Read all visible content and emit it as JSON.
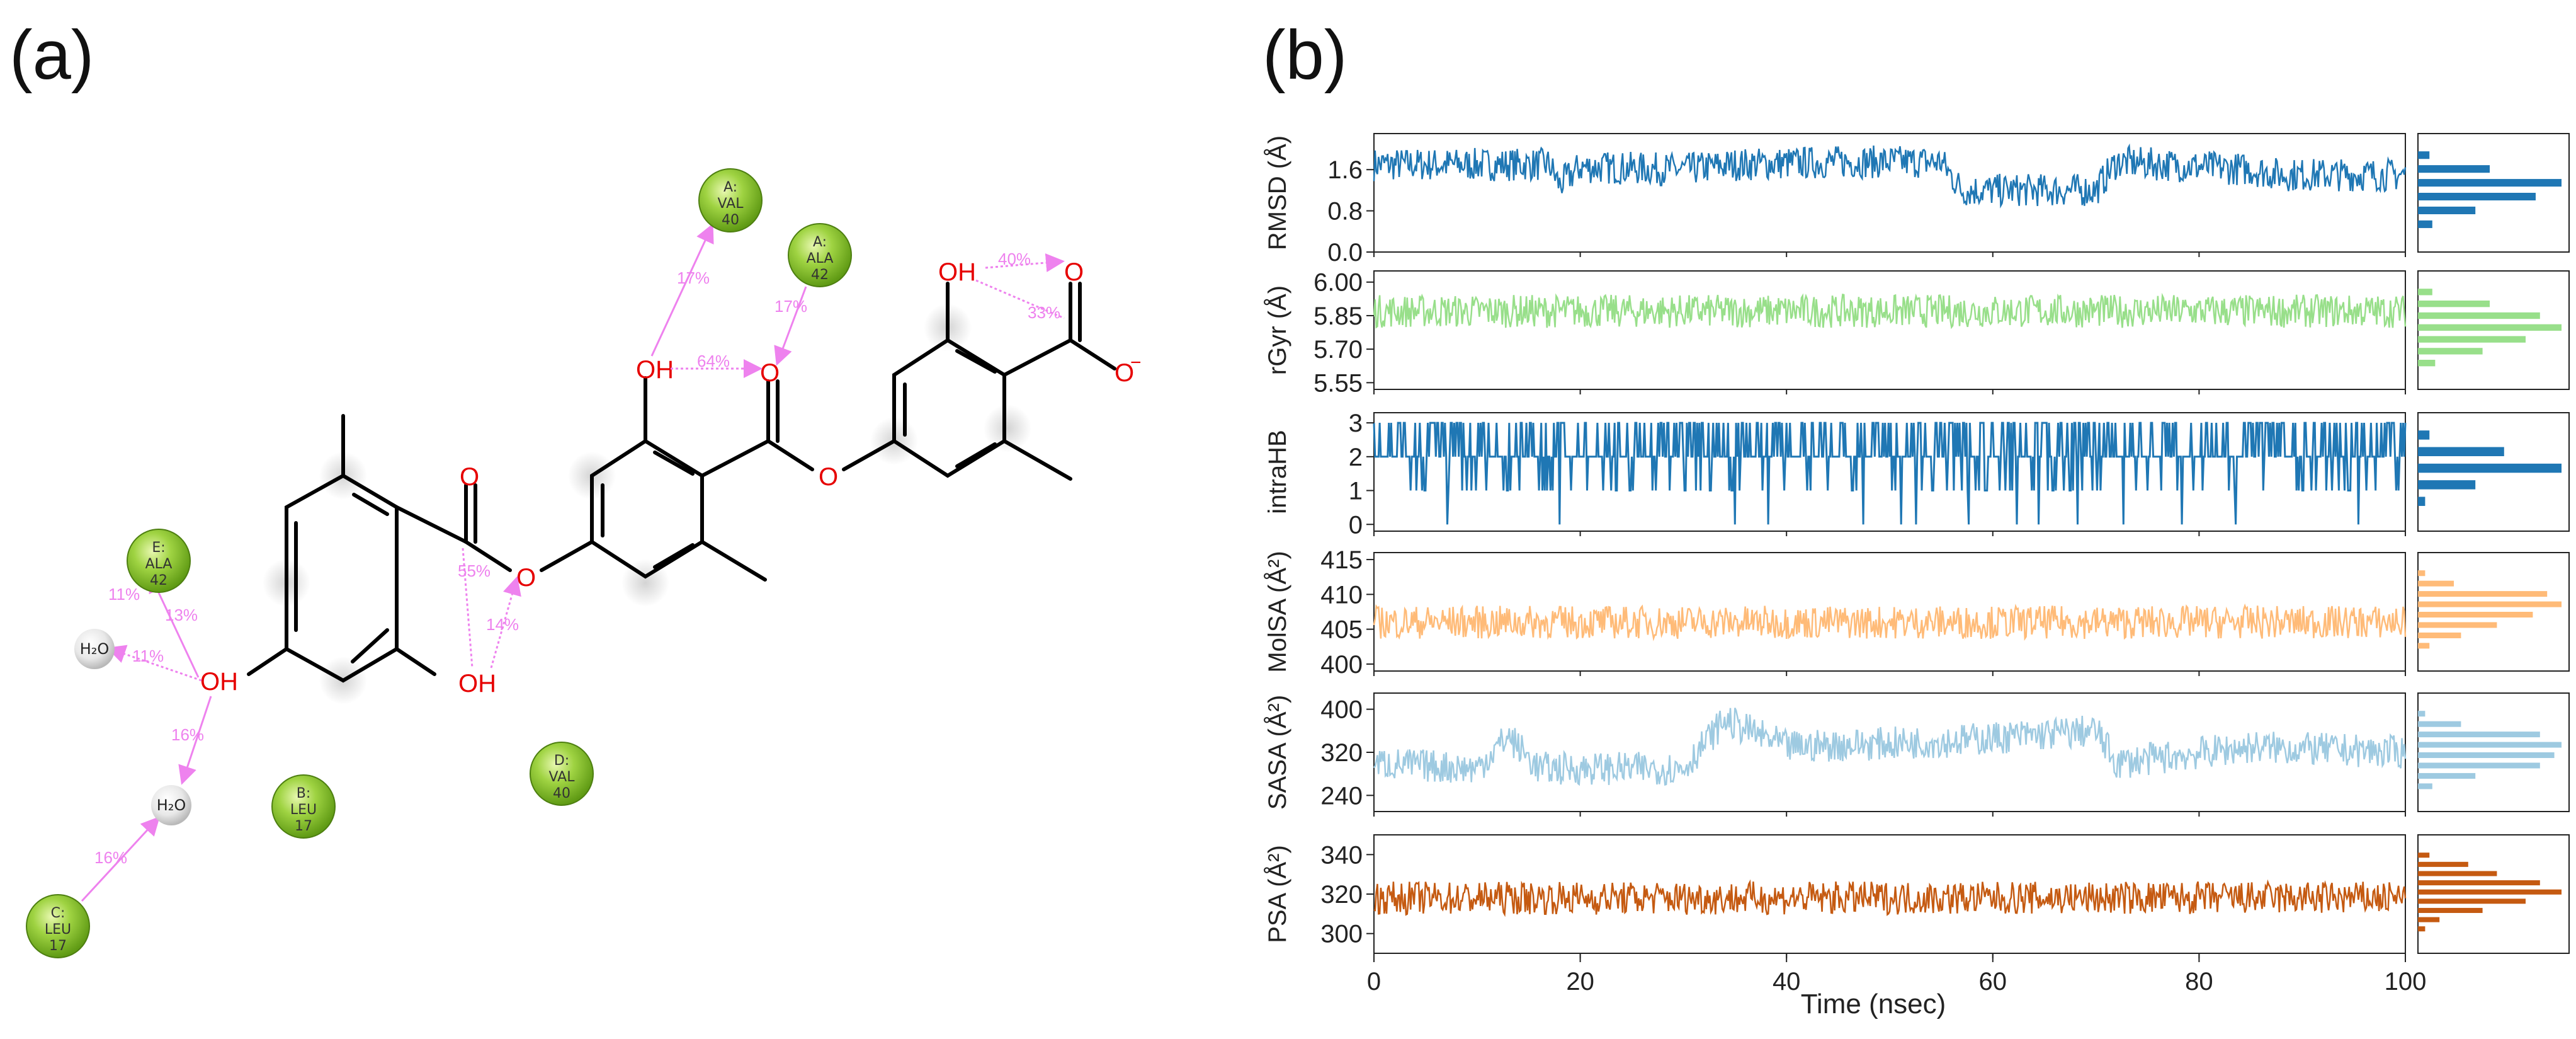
{
  "panels": {
    "a": "(a)",
    "b": "(b)"
  },
  "ligand_diagram": {
    "atoms": {
      "oh": "OH",
      "o": "O",
      "o_minus": "O",
      "charge": "−",
      "water": "H₂O"
    },
    "residues": [
      {
        "chain": "A:",
        "name": "VAL",
        "num": "40"
      },
      {
        "chain": "A:",
        "name": "ALA",
        "num": "42"
      },
      {
        "chain": "E:",
        "name": "ALA",
        "num": "42"
      },
      {
        "chain": "B:",
        "name": "LEU",
        "num": "17"
      },
      {
        "chain": "D:",
        "name": "VAL",
        "num": "40"
      },
      {
        "chain": "C:",
        "name": "LEU",
        "num": "17"
      }
    ],
    "interactions": [
      "17%",
      "17%",
      "64%",
      "40%",
      "33%",
      "55%",
      "14%",
      "11%",
      "13%",
      "11%",
      "16%",
      "16%"
    ],
    "colors": {
      "bond": "#000000",
      "oxygen": "#e60000",
      "hbond": "#ee82ee",
      "residue": "#8cc63f",
      "water": "#e6e6e6"
    }
  },
  "chart_data": {
    "type": "line",
    "xlabel": "Time (nsec)",
    "x_ticks": [
      0,
      20,
      40,
      60,
      80,
      100
    ],
    "xlim": [
      0,
      100
    ],
    "series": [
      {
        "name": "RMSD (Å)",
        "color": "#1f77b4",
        "ylim": [
          0.0,
          2.3
        ],
        "y_ticks": [
          "1.6",
          "0.8",
          "0.0"
        ],
        "segments": [
          [
            0,
            1.7
          ],
          [
            17,
            1.7
          ],
          [
            18,
            1.3
          ],
          [
            20,
            1.65
          ],
          [
            30,
            1.6
          ],
          [
            35,
            1.7
          ],
          [
            45,
            1.75
          ],
          [
            55,
            1.75
          ],
          [
            57,
            1.2
          ],
          [
            70,
            1.2
          ],
          [
            72,
            1.75
          ],
          [
            85,
            1.6
          ],
          [
            88,
            1.5
          ],
          [
            100,
            1.5
          ]
        ],
        "hist": [
          0.08,
          0.5,
          1.0,
          0.82,
          0.4,
          0.1
        ]
      },
      {
        "name": "rGyr (Å)",
        "color": "#98df8a",
        "ylim": [
          5.52,
          6.05
        ],
        "y_ticks": [
          "6.00",
          "5.85",
          "5.70",
          "5.55"
        ],
        "segments": [
          [
            0,
            5.87
          ],
          [
            100,
            5.87
          ]
        ],
        "hist": [
          0.1,
          0.5,
          0.85,
          1.0,
          0.75,
          0.45,
          0.12
        ]
      },
      {
        "name": "intraHB",
        "color": "#1f77b4",
        "ylim": [
          -0.2,
          3.3
        ],
        "y_ticks": [
          "3",
          "2",
          "1",
          "0"
        ],
        "segments": [
          [
            0,
            2.0
          ],
          [
            100,
            2.0
          ]
        ],
        "hist": [
          0.08,
          0.6,
          1.0,
          0.4,
          0.05
        ]
      },
      {
        "name": "MolSA (Å²)",
        "color": "#ffbb78",
        "ylim": [
          399,
          416
        ],
        "y_ticks": [
          "415",
          "410",
          "405",
          "400"
        ],
        "segments": [
          [
            0,
            406
          ],
          [
            100,
            406
          ]
        ],
        "hist": [
          0.05,
          0.25,
          0.9,
          1.0,
          0.8,
          0.55,
          0.3,
          0.08
        ]
      },
      {
        "name": "SASA (Å²)",
        "color": "#9ecae1",
        "ylim": [
          210,
          430
        ],
        "y_ticks": [
          "400",
          "320",
          "240"
        ],
        "segments": [
          [
            0,
            300
          ],
          [
            10,
            290
          ],
          [
            13,
            350
          ],
          [
            16,
            290
          ],
          [
            30,
            290
          ],
          [
            34,
            380
          ],
          [
            40,
            330
          ],
          [
            55,
            340
          ],
          [
            70,
            360
          ],
          [
            72,
            300
          ],
          [
            85,
            330
          ],
          [
            100,
            320
          ]
        ],
        "hist": [
          0.05,
          0.3,
          0.85,
          1.0,
          0.95,
          0.85,
          0.4,
          0.1
        ]
      },
      {
        "name": "PSA (Å²)",
        "color": "#c55a11",
        "ylim": [
          290,
          350
        ],
        "y_ticks": [
          "340",
          "320",
          "300"
        ],
        "segments": [
          [
            0,
            318
          ],
          [
            100,
            318
          ]
        ],
        "hist": [
          0.08,
          0.35,
          0.55,
          0.85,
          1.0,
          0.75,
          0.45,
          0.15,
          0.05
        ]
      }
    ]
  }
}
